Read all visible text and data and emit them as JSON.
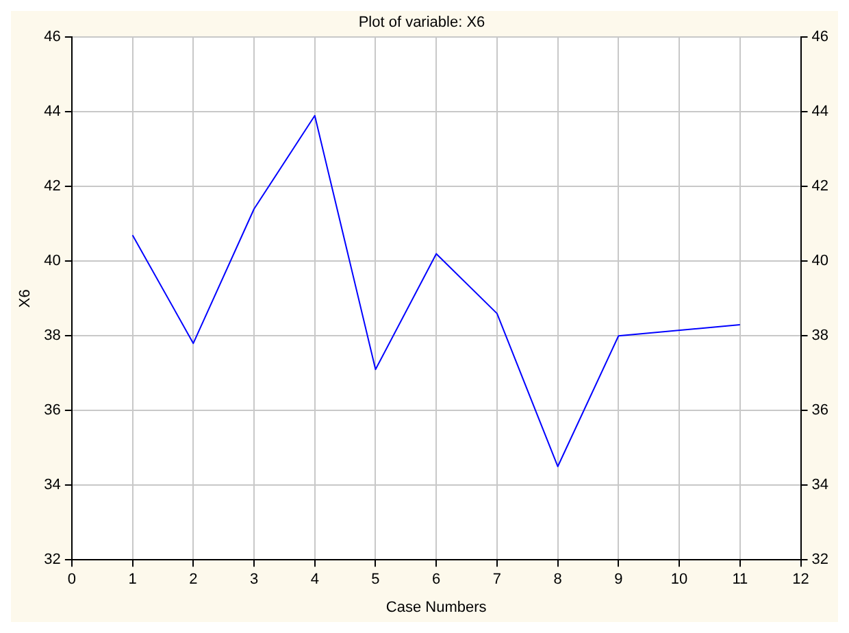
{
  "chart_data": {
    "type": "line",
    "title": "Plot of variable: X6",
    "xlabel": "Case Numbers",
    "ylabel": "X6",
    "x": [
      1,
      2,
      3,
      4,
      5,
      6,
      7,
      8,
      9,
      11
    ],
    "series": [
      {
        "color": "#0000ff",
        "values": [
          40.7,
          37.8,
          41.4,
          43.9,
          37.1,
          40.2,
          38.6,
          34.5,
          38.0,
          38.3
        ]
      }
    ],
    "xlim": [
      0,
      12
    ],
    "xticks": [
      0,
      1,
      2,
      3,
      4,
      5,
      6,
      7,
      8,
      9,
      10,
      11,
      12
    ],
    "ylim": [
      32,
      46
    ],
    "yticks": [
      32,
      34,
      36,
      38,
      40,
      42,
      44,
      46
    ],
    "y2lim": [
      32,
      46
    ],
    "y2ticks": [
      32,
      34,
      36,
      38,
      40,
      42,
      44,
      46
    ],
    "grid": true,
    "marker": "none",
    "line_style": "solid"
  }
}
